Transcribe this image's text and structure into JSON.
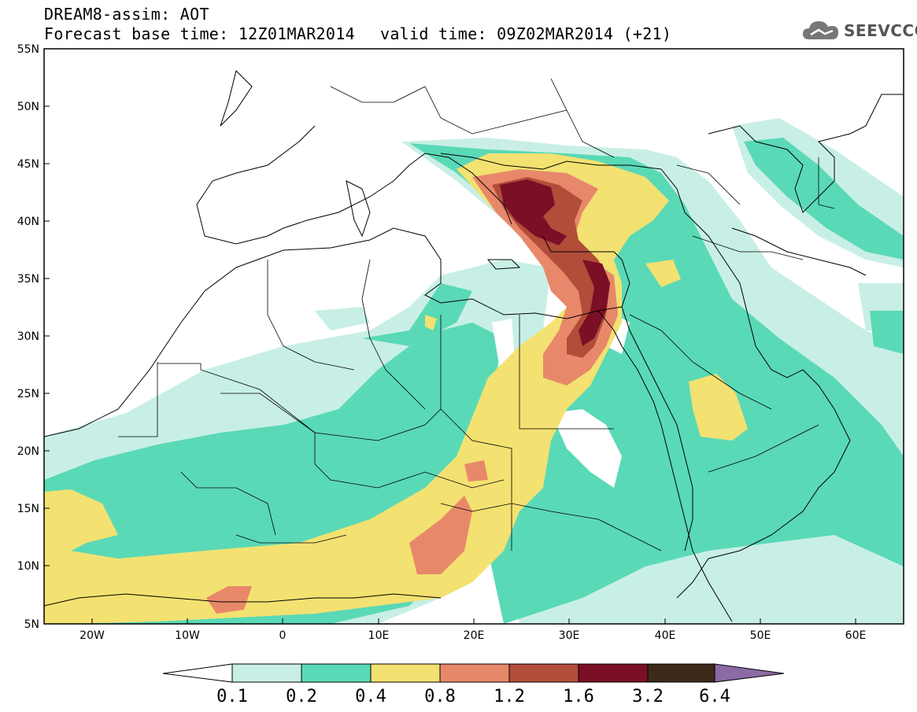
{
  "header": {
    "title_line1": "DREAM8-assim: AOT",
    "forecast_base": "Forecast base time: 12Z01MAR2014",
    "valid_time": "valid time: 09Z02MAR2014 (+21)"
  },
  "logo": {
    "text": "SEEVCCC",
    "icon": "cloud-icon"
  },
  "map": {
    "region": "North Africa, Mediterranean, Middle East",
    "lat_ticks": [
      "55N",
      "50N",
      "45N",
      "40N",
      "35N",
      "30N",
      "25N",
      "20N",
      "15N",
      "10N",
      "5N"
    ],
    "lon_ticks": [
      "20W",
      "10W",
      "0",
      "10E",
      "20E",
      "30E",
      "40E",
      "50E",
      "60E"
    ],
    "lon_range": [
      -25,
      65
    ],
    "lat_range": [
      5,
      55
    ]
  },
  "colorbar": {
    "labels": [
      "0.1",
      "0.2",
      "0.4",
      "0.8",
      "1.2",
      "1.6",
      "3.2",
      "6.4"
    ],
    "colors": {
      "under": "#ffffff",
      "c1": "#c8efe6",
      "c2": "#5ad9b6",
      "c3": "#f3e171",
      "c4": "#e8886a",
      "c5": "#b24d3a",
      "c6": "#7a0f26",
      "c7": "#3e2a18",
      "over": "#8b6aa6"
    }
  }
}
